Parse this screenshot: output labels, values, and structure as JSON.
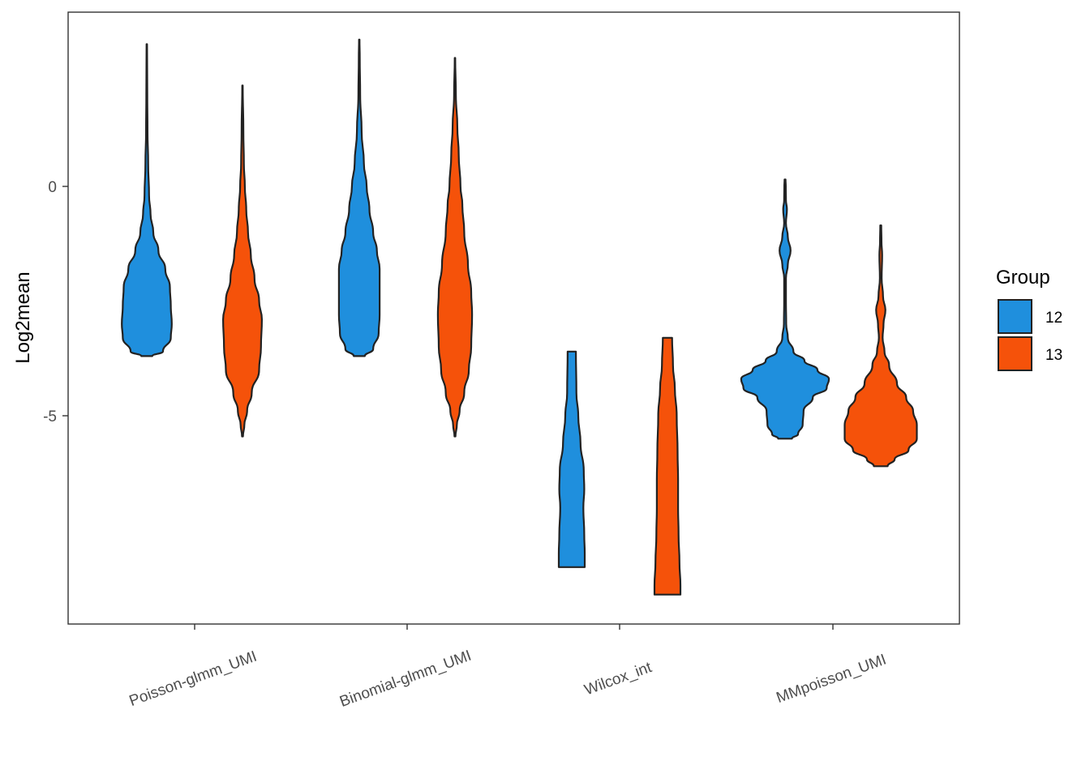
{
  "chart_data": {
    "type": "violin",
    "xlabel": "",
    "ylabel": "Log2mean",
    "ylim": [
      -9.5,
      3.8
    ],
    "y_ticks": [
      {
        "value": 0,
        "label": "0"
      },
      {
        "value": -5,
        "label": "-5"
      }
    ],
    "categories": [
      "Poisson-glmm_UMI",
      "Binomial-glmm_UMI",
      "Wilcox_int",
      "MMpoisson_UMI"
    ],
    "legend": {
      "title": "Group",
      "position": "right",
      "entries": [
        {
          "label": "12",
          "color": "#1f8fdd"
        },
        {
          "label": "13",
          "color": "#f5520a"
        }
      ]
    },
    "grid": false,
    "series": [
      {
        "name": "12",
        "color": "#1f8fdd",
        "violins": [
          {
            "category": "Poisson-glmm_UMI",
            "profile": [
              [
                -3.7,
                0.12
              ],
              [
                -3.6,
                0.35
              ],
              [
                -3.3,
                0.52
              ],
              [
                -3.0,
                0.54
              ],
              [
                -2.6,
                0.52
              ],
              [
                -2.2,
                0.5
              ],
              [
                -1.8,
                0.4
              ],
              [
                -1.4,
                0.25
              ],
              [
                -1.0,
                0.14
              ],
              [
                -0.6,
                0.08
              ],
              [
                -0.2,
                0.05
              ],
              [
                0.5,
                0.03
              ],
              [
                1.2,
                0.015
              ],
              [
                2.0,
                0.01
              ],
              [
                3.1,
                0.005
              ]
            ]
          },
          {
            "category": "Binomial-glmm_UMI",
            "profile": [
              [
                -3.7,
                0.12
              ],
              [
                -3.55,
                0.3
              ],
              [
                -3.2,
                0.42
              ],
              [
                -2.8,
                0.44
              ],
              [
                -2.2,
                0.44
              ],
              [
                -1.8,
                0.44
              ],
              [
                -1.4,
                0.38
              ],
              [
                -1.0,
                0.3
              ],
              [
                -0.5,
                0.22
              ],
              [
                0.0,
                0.16
              ],
              [
                0.5,
                0.1
              ],
              [
                1.2,
                0.05
              ],
              [
                2.0,
                0.02
              ],
              [
                2.8,
                0.01
              ],
              [
                3.2,
                0.005
              ]
            ]
          },
          {
            "category": "Wilcox_int",
            "profile": [
              [
                -8.3,
                0.28
              ],
              [
                -8.0,
                0.28
              ],
              [
                -7.6,
                0.27
              ],
              [
                -7.0,
                0.25
              ],
              [
                -6.6,
                0.27
              ],
              [
                -6.2,
                0.26
              ],
              [
                -5.6,
                0.19
              ],
              [
                -5.0,
                0.14
              ],
              [
                -4.5,
                0.1
              ],
              [
                -3.6,
                0.09
              ]
            ]
          },
          {
            "category": "MMpoisson_UMI",
            "profile": [
              [
                -5.5,
                0.15
              ],
              [
                -5.4,
                0.28
              ],
              [
                -5.2,
                0.38
              ],
              [
                -4.9,
                0.4
              ],
              [
                -4.6,
                0.6
              ],
              [
                -4.4,
                0.9
              ],
              [
                -4.2,
                0.95
              ],
              [
                -4.0,
                0.7
              ],
              [
                -3.8,
                0.42
              ],
              [
                -3.6,
                0.18
              ],
              [
                -3.3,
                0.06
              ],
              [
                -3.0,
                0.025
              ],
              [
                -2.5,
                0.02
              ],
              [
                -2.0,
                0.02
              ],
              [
                -1.7,
                0.06
              ],
              [
                -1.4,
                0.12
              ],
              [
                -1.1,
                0.06
              ],
              [
                -0.8,
                0.02
              ],
              [
                -0.5,
                0.04
              ],
              [
                -0.3,
                0.02
              ],
              [
                0.0,
                0.015
              ],
              [
                0.15,
                0.01
              ]
            ]
          }
        ]
      },
      {
        "name": "13",
        "color": "#f5520a",
        "violins": [
          {
            "category": "Poisson-glmm_UMI",
            "profile": [
              [
                -5.45,
                0.01
              ],
              [
                -5.2,
                0.04
              ],
              [
                -4.9,
                0.1
              ],
              [
                -4.5,
                0.2
              ],
              [
                -4.0,
                0.36
              ],
              [
                -3.5,
                0.4
              ],
              [
                -2.9,
                0.42
              ],
              [
                -2.5,
                0.36
              ],
              [
                -2.0,
                0.26
              ],
              [
                -1.5,
                0.18
              ],
              [
                -1.0,
                0.12
              ],
              [
                -0.5,
                0.08
              ],
              [
                0.0,
                0.05
              ],
              [
                0.5,
                0.03
              ],
              [
                1.2,
                0.02
              ],
              [
                2.2,
                0.005
              ]
            ]
          },
          {
            "category": "Binomial-glmm_UMI",
            "profile": [
              [
                -5.45,
                0.01
              ],
              [
                -5.2,
                0.04
              ],
              [
                -4.9,
                0.1
              ],
              [
                -4.5,
                0.2
              ],
              [
                -4.0,
                0.3
              ],
              [
                -3.5,
                0.35
              ],
              [
                -2.8,
                0.37
              ],
              [
                -2.3,
                0.35
              ],
              [
                -1.7,
                0.28
              ],
              [
                -1.0,
                0.2
              ],
              [
                -0.4,
                0.16
              ],
              [
                0.0,
                0.12
              ],
              [
                0.7,
                0.08
              ],
              [
                1.3,
                0.05
              ],
              [
                2.0,
                0.02
              ],
              [
                2.8,
                0.005
              ]
            ]
          },
          {
            "category": "Wilcox_int",
            "profile": [
              [
                -8.9,
                0.28
              ],
              [
                -8.7,
                0.28
              ],
              [
                -8.2,
                0.26
              ],
              [
                -7.6,
                0.24
              ],
              [
                -7.0,
                0.23
              ],
              [
                -6.4,
                0.23
              ],
              [
                -5.8,
                0.22
              ],
              [
                -5.0,
                0.2
              ],
              [
                -4.4,
                0.16
              ],
              [
                -3.9,
                0.12
              ],
              [
                -3.3,
                0.1
              ]
            ]
          },
          {
            "category": "MMpoisson_UMI",
            "profile": [
              [
                -6.1,
                0.15
              ],
              [
                -5.95,
                0.3
              ],
              [
                -5.75,
                0.6
              ],
              [
                -5.5,
                0.78
              ],
              [
                -5.2,
                0.78
              ],
              [
                -4.9,
                0.7
              ],
              [
                -4.6,
                0.55
              ],
              [
                -4.3,
                0.35
              ],
              [
                -3.9,
                0.18
              ],
              [
                -3.6,
                0.08
              ],
              [
                -3.3,
                0.04
              ],
              [
                -3.0,
                0.06
              ],
              [
                -2.7,
                0.1
              ],
              [
                -2.4,
                0.05
              ],
              [
                -2.0,
                0.02
              ],
              [
                -1.5,
                0.03
              ],
              [
                -1.2,
                0.015
              ],
              [
                -0.85,
                0.01
              ]
            ]
          }
        ]
      }
    ]
  }
}
